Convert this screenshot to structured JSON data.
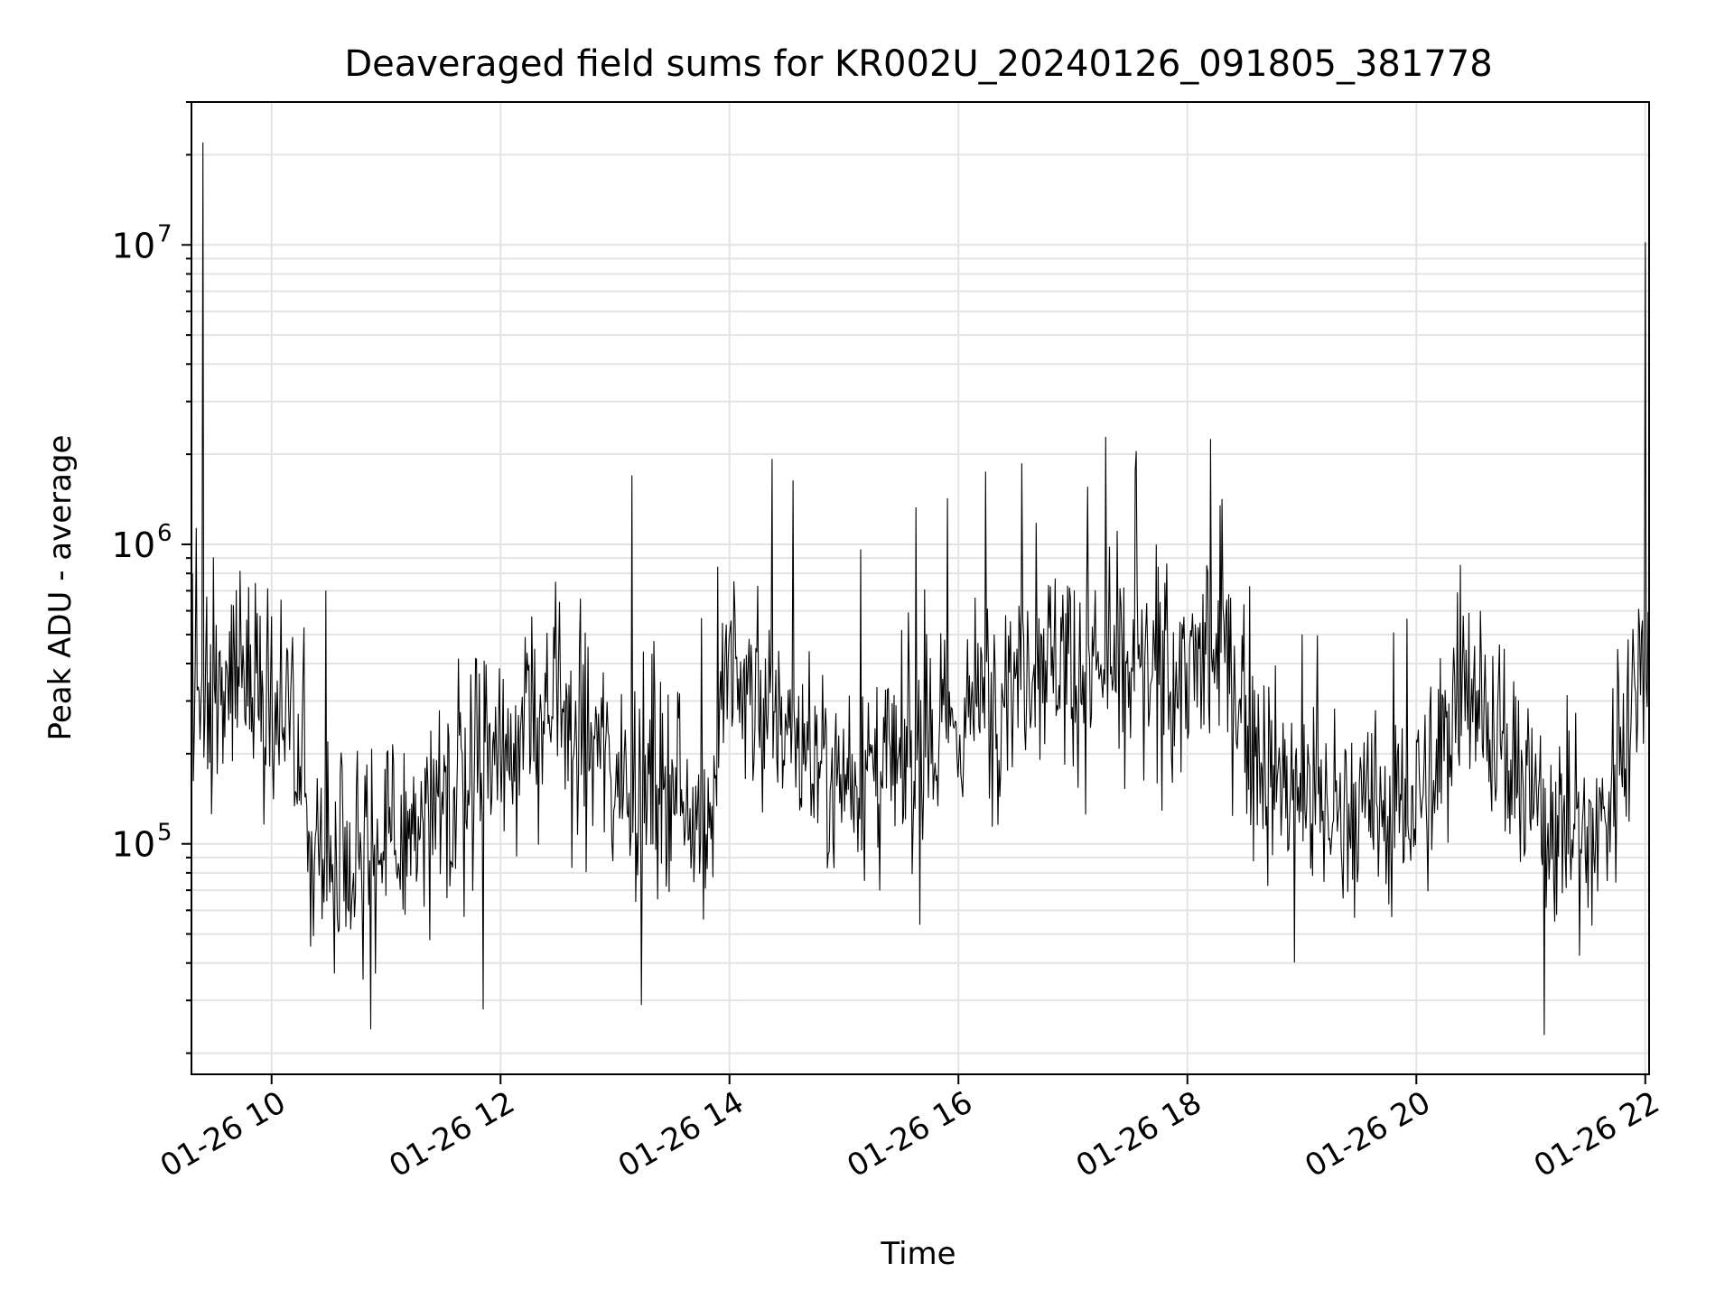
{
  "chart_data": {
    "type": "line",
    "title": "Deaveraged field sums for KR002U_20240126_091805_381778",
    "xlabel": "Time",
    "ylabel": "Peak ADU - average",
    "x_scale": "time",
    "y_scale": "log",
    "xlim": [
      "2024-01-26T09:18",
      "2024-01-26T22:02"
    ],
    "ylim": [
      17000,
      30000000
    ],
    "x_ticks": [
      {
        "value": "2024-01-26T10:00",
        "label": "01-26 10"
      },
      {
        "value": "2024-01-26T12:00",
        "label": "01-26 12"
      },
      {
        "value": "2024-01-26T14:00",
        "label": "01-26 14"
      },
      {
        "value": "2024-01-26T16:00",
        "label": "01-26 16"
      },
      {
        "value": "2024-01-26T18:00",
        "label": "01-26 18"
      },
      {
        "value": "2024-01-26T20:00",
        "label": "01-26 20"
      },
      {
        "value": "2024-01-26T22:00",
        "label": "01-26 22"
      }
    ],
    "y_ticks": [
      {
        "value": 100000,
        "base": "10",
        "exp": "5"
      },
      {
        "value": 1000000,
        "base": "10",
        "exp": "6"
      },
      {
        "value": 10000000,
        "base": "10",
        "exp": "7"
      }
    ],
    "grid": true,
    "series_color": "#000000",
    "baseline_envelope": [
      {
        "x": "2024-01-26T09:18",
        "y": 300000
      },
      {
        "x": "2024-01-26T09:45",
        "y": 400000
      },
      {
        "x": "2024-01-26T10:10",
        "y": 250000
      },
      {
        "x": "2024-01-26T10:20",
        "y": 100000
      },
      {
        "x": "2024-01-26T11:00",
        "y": 95000
      },
      {
        "x": "2024-01-26T11:30",
        "y": 120000
      },
      {
        "x": "2024-01-26T11:50",
        "y": 200000
      },
      {
        "x": "2024-01-26T12:30",
        "y": 280000
      },
      {
        "x": "2024-01-26T13:00",
        "y": 180000
      },
      {
        "x": "2024-01-26T13:50",
        "y": 130000
      },
      {
        "x": "2024-01-26T14:00",
        "y": 380000
      },
      {
        "x": "2024-01-26T14:50",
        "y": 180000
      },
      {
        "x": "2024-01-26T15:30",
        "y": 170000
      },
      {
        "x": "2024-01-26T16:00",
        "y": 250000
      },
      {
        "x": "2024-01-26T16:40",
        "y": 450000
      },
      {
        "x": "2024-01-26T17:30",
        "y": 350000
      },
      {
        "x": "2024-01-26T18:20",
        "y": 400000
      },
      {
        "x": "2024-01-26T18:45",
        "y": 160000
      },
      {
        "x": "2024-01-26T19:30",
        "y": 120000
      },
      {
        "x": "2024-01-26T20:10",
        "y": 150000
      },
      {
        "x": "2024-01-26T20:25",
        "y": 450000
      },
      {
        "x": "2024-01-26T20:50",
        "y": 160000
      },
      {
        "x": "2024-01-26T21:30",
        "y": 100000
      },
      {
        "x": "2024-01-26T21:40",
        "y": 130000
      },
      {
        "x": "2024-01-26T21:55",
        "y": 350000
      },
      {
        "x": "2024-01-26T22:02",
        "y": 600000
      }
    ],
    "peaks": [
      {
        "x": "2024-01-26T09:24",
        "y": 22000000
      },
      {
        "x": "2024-01-26T13:09",
        "y": 1700000
      },
      {
        "x": "2024-01-26T16:14",
        "y": 1750000
      },
      {
        "x": "2024-01-26T17:33",
        "y": 2050000
      },
      {
        "x": "2024-01-26T18:12",
        "y": 2250000
      },
      {
        "x": "2024-01-26T22:00",
        "y": 10200000
      }
    ],
    "troughs": [
      {
        "x": "2024-01-26T10:52",
        "y": 24000
      },
      {
        "x": "2024-01-26T11:51",
        "y": 28000
      },
      {
        "x": "2024-01-26T13:14",
        "y": 29000
      },
      {
        "x": "2024-01-26T21:07",
        "y": 23000
      }
    ],
    "noise_decades": 0.45,
    "sample_count": 1530
  }
}
